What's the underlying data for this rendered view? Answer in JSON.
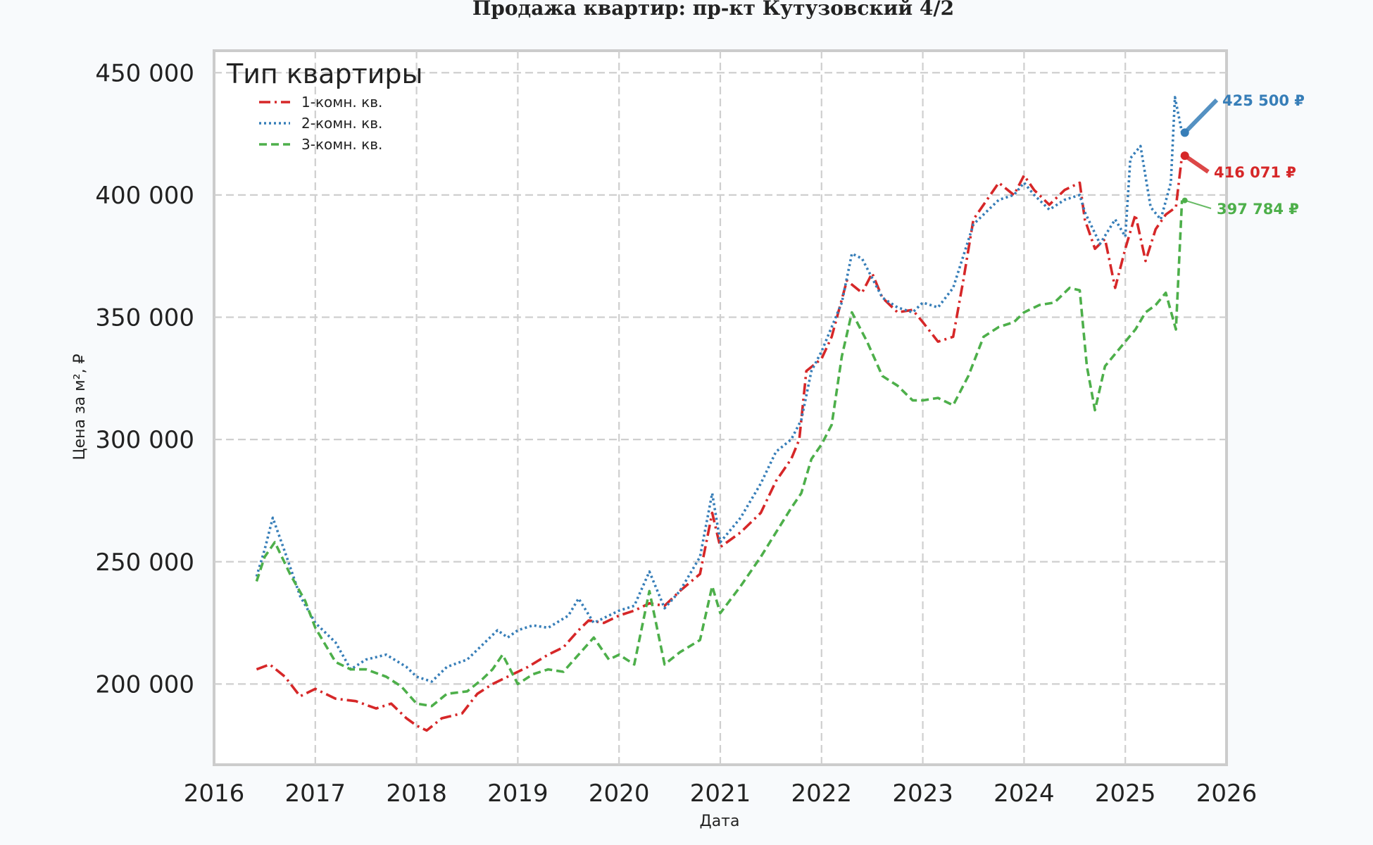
{
  "chart_data": {
    "type": "line",
    "title": "Продажа квартир: пр-кт Кутузовский 4/2",
    "xlabel": "Дата",
    "ylabel": "Цена за м², ₽",
    "xlim": [
      2016,
      2026
    ],
    "ylim": [
      167000,
      459000
    ],
    "xticks": [
      2016,
      2017,
      2018,
      2019,
      2020,
      2021,
      2022,
      2023,
      2024,
      2025,
      2026
    ],
    "yticks": [
      200000,
      250000,
      300000,
      350000,
      400000,
      450000
    ],
    "ytick_labels": [
      "200 000",
      "250 000",
      "300 000",
      "350 000",
      "400 000",
      "450 000"
    ],
    "grid": true,
    "legend": {
      "title": "Тип квартиры",
      "position": "top-left"
    },
    "series": [
      {
        "name": "1-комн. кв.",
        "color": "#d62728",
        "dash": "dashdot",
        "x": [
          2016.42,
          2016.55,
          2016.7,
          2016.85,
          2017.0,
          2017.2,
          2017.4,
          2017.6,
          2017.75,
          2017.9,
          2018.0,
          2018.1,
          2018.25,
          2018.45,
          2018.6,
          2018.75,
          2018.9,
          2019.1,
          2019.3,
          2019.45,
          2019.6,
          2019.7,
          2019.85,
          2020.0,
          2020.15,
          2020.3,
          2020.45,
          2020.6,
          2020.8,
          2020.92,
          2021.0,
          2021.2,
          2021.4,
          2021.55,
          2021.7,
          2021.78,
          2021.85,
          2022.0,
          2022.1,
          2022.25,
          2022.4,
          2022.5,
          2022.6,
          2022.75,
          2022.9,
          2023.0,
          2023.15,
          2023.3,
          2023.4,
          2023.5,
          2023.6,
          2023.75,
          2023.9,
          2024.0,
          2024.1,
          2024.25,
          2024.4,
          2024.55,
          2024.6,
          2024.7,
          2024.8,
          2024.9,
          2025.0,
          2025.1,
          2025.2,
          2025.3,
          2025.4,
          2025.5,
          2025.56
        ],
        "y": [
          206000,
          208000,
          203000,
          195000,
          198000,
          194000,
          193000,
          190000,
          192000,
          186000,
          183000,
          181000,
          186000,
          188000,
          196000,
          200000,
          203000,
          207000,
          212000,
          215000,
          222000,
          226000,
          225000,
          228000,
          230000,
          233000,
          232000,
          238000,
          245000,
          270000,
          256000,
          262000,
          270000,
          283000,
          292000,
          300000,
          328000,
          333000,
          342000,
          365000,
          360000,
          368000,
          358000,
          352000,
          353000,
          348000,
          340000,
          342000,
          365000,
          390000,
          396000,
          405000,
          400000,
          408000,
          402000,
          396000,
          402000,
          405000,
          390000,
          378000,
          382000,
          362000,
          378000,
          392000,
          373000,
          386000,
          392000,
          395000,
          416071
        ]
      },
      {
        "name": "2-комн. кв.",
        "color": "#377eb8",
        "dash": "dotted",
        "x": [
          2016.42,
          2016.5,
          2016.58,
          2016.7,
          2016.85,
          2017.0,
          2017.2,
          2017.35,
          2017.5,
          2017.7,
          2017.9,
          2018.0,
          2018.15,
          2018.3,
          2018.5,
          2018.65,
          2018.8,
          2018.9,
          2019.0,
          2019.15,
          2019.3,
          2019.5,
          2019.6,
          2019.75,
          2019.9,
          2020.0,
          2020.15,
          2020.3,
          2020.45,
          2020.6,
          2020.8,
          2020.92,
          2021.0,
          2021.2,
          2021.4,
          2021.55,
          2021.7,
          2021.8,
          2021.9,
          2022.0,
          2022.1,
          2022.2,
          2022.3,
          2022.4,
          2022.5,
          2022.6,
          2022.75,
          2022.9,
          2023.0,
          2023.15,
          2023.3,
          2023.4,
          2023.5,
          2023.6,
          2023.75,
          2023.9,
          2024.0,
          2024.1,
          2024.25,
          2024.4,
          2024.55,
          2024.6,
          2024.75,
          2024.9,
          2025.0,
          2025.05,
          2025.15,
          2025.25,
          2025.35,
          2025.45,
          2025.49,
          2025.56
        ],
        "y": [
          244000,
          255000,
          268000,
          254000,
          236000,
          225000,
          217000,
          206000,
          210000,
          212000,
          207000,
          203000,
          201000,
          207000,
          210000,
          216000,
          222000,
          219000,
          222000,
          224000,
          223000,
          228000,
          235000,
          225000,
          228000,
          230000,
          232000,
          246000,
          231000,
          238000,
          252000,
          278000,
          258000,
          268000,
          282000,
          295000,
          300000,
          308000,
          328000,
          336000,
          346000,
          356000,
          376000,
          374000,
          366000,
          358000,
          354000,
          352000,
          356000,
          354000,
          362000,
          375000,
          388000,
          392000,
          398000,
          400000,
          405000,
          400000,
          394000,
          398000,
          400000,
          393000,
          380000,
          390000,
          383000,
          415000,
          420000,
          395000,
          390000,
          405000,
          440000,
          425500
        ]
      },
      {
        "name": "3-комн. кв.",
        "color": "#4daf4a",
        "dash": "dashed",
        "x": [
          2016.42,
          2016.5,
          2016.6,
          2016.75,
          2016.9,
          2017.0,
          2017.2,
          2017.35,
          2017.5,
          2017.7,
          2017.85,
          2018.0,
          2018.15,
          2018.3,
          2018.5,
          2018.65,
          2018.75,
          2018.85,
          2019.0,
          2019.15,
          2019.3,
          2019.45,
          2019.6,
          2019.75,
          2019.9,
          2020.0,
          2020.15,
          2020.3,
          2020.45,
          2020.6,
          2020.8,
          2020.92,
          2021.0,
          2021.2,
          2021.4,
          2021.55,
          2021.7,
          2021.8,
          2021.9,
          2022.0,
          2022.1,
          2022.2,
          2022.3,
          2022.45,
          2022.6,
          2022.75,
          2022.9,
          2023.0,
          2023.15,
          2023.3,
          2023.45,
          2023.6,
          2023.75,
          2023.9,
          2024.0,
          2024.15,
          2024.3,
          2024.45,
          2024.55,
          2024.62,
          2024.7,
          2024.8,
          2024.9,
          2025.0,
          2025.1,
          2025.2,
          2025.3,
          2025.4,
          2025.5,
          2025.56
        ],
        "y": [
          242000,
          252000,
          258000,
          245000,
          234000,
          223000,
          209000,
          206000,
          206000,
          203000,
          199000,
          192000,
          191000,
          196000,
          197000,
          202000,
          206000,
          212000,
          200000,
          204000,
          206000,
          205000,
          212000,
          219000,
          210000,
          212000,
          208000,
          238000,
          208000,
          213000,
          218000,
          240000,
          229000,
          240000,
          252000,
          262000,
          272000,
          278000,
          292000,
          298000,
          306000,
          334000,
          352000,
          340000,
          326000,
          322000,
          316000,
          316000,
          317000,
          314000,
          326000,
          342000,
          346000,
          348000,
          352000,
          355000,
          356000,
          362000,
          361000,
          330000,
          312000,
          330000,
          335000,
          340000,
          345000,
          352000,
          355000,
          360000,
          345000,
          397784
        ]
      }
    ],
    "annotations": [
      {
        "series": "2-комн. кв.",
        "text": "425 500 ₽",
        "x": 2025.56,
        "y": 425500,
        "color": "#377eb8"
      },
      {
        "series": "1-комн. кв.",
        "text": "416 071 ₽",
        "x": 2025.56,
        "y": 416071,
        "color": "#d62728"
      },
      {
        "series": "3-комн. кв.",
        "text": "397 784 ₽",
        "x": 2025.56,
        "y": 397784,
        "color": "#4daf4a"
      }
    ]
  }
}
